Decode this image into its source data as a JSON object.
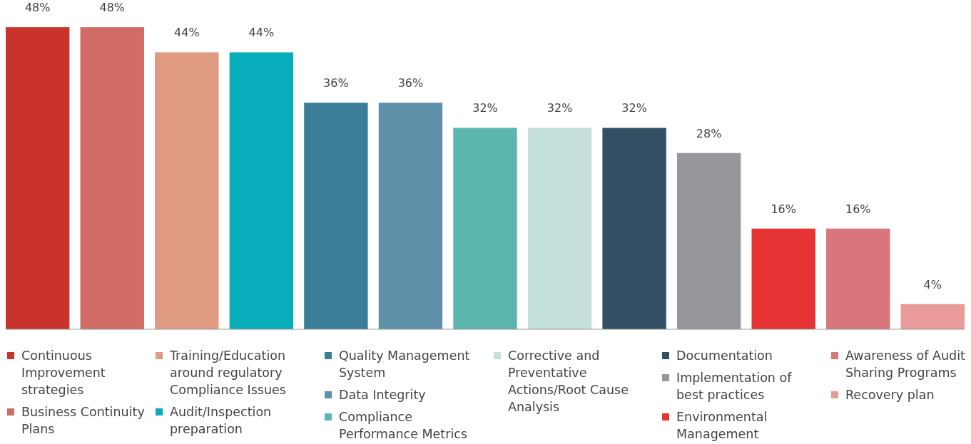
{
  "chart_data": {
    "type": "bar",
    "stacked": true,
    "categories": [
      null,
      null,
      null,
      null,
      null,
      null,
      null,
      null,
      null,
      null,
      null,
      null,
      null
    ],
    "series": [
      {
        "name": "Continuous Improvement strategies",
        "color": "#c9332c",
        "values": [
          48,
          null,
          null,
          null,
          null,
          null,
          null,
          null,
          null,
          null,
          null,
          null,
          null
        ],
        "value_labels": [
          "48%",
          null,
          null,
          null,
          null,
          null,
          null,
          null,
          null,
          null,
          null,
          null,
          null
        ]
      },
      {
        "name": "Business Continuity Plans",
        "color": "#d16b66",
        "values": [
          null,
          48,
          null,
          null,
          null,
          null,
          null,
          null,
          null,
          null,
          null,
          null,
          null
        ],
        "value_labels": [
          null,
          "48%",
          null,
          null,
          null,
          null,
          null,
          null,
          null,
          null,
          null,
          null,
          null
        ]
      },
      {
        "name": "Training/Education around regulatory Compliance Issues",
        "color": "#e09a82",
        "values": [
          null,
          null,
          44,
          null,
          null,
          null,
          null,
          null,
          null,
          null,
          null,
          null,
          null
        ],
        "value_labels": [
          null,
          null,
          "44%",
          null,
          null,
          null,
          null,
          null,
          null,
          null,
          null,
          null,
          null
        ]
      },
      {
        "name": "Audit/Inspection preparation",
        "color": "#08adbb",
        "values": [
          null,
          null,
          null,
          44,
          null,
          null,
          null,
          null,
          null,
          null,
          null,
          null,
          null
        ],
        "value_labels": [
          null,
          null,
          null,
          "44%",
          null,
          null,
          null,
          null,
          null,
          null,
          null,
          null,
          null
        ]
      },
      {
        "name": "Quality Management System",
        "color": "#3b7e9a",
        "values": [
          null,
          null,
          null,
          null,
          36,
          null,
          null,
          null,
          null,
          null,
          null,
          null,
          null
        ],
        "value_labels": [
          null,
          null,
          null,
          null,
          "36%",
          null,
          null,
          null,
          null,
          null,
          null,
          null,
          null
        ]
      },
      {
        "name": "Data Integrity",
        "color": "#5f90aa",
        "values": [
          null,
          null,
          null,
          null,
          null,
          36,
          null,
          null,
          null,
          null,
          null,
          null,
          null
        ],
        "value_labels": [
          null,
          null,
          null,
          null,
          null,
          "36%",
          null,
          null,
          null,
          null,
          null,
          null,
          null
        ]
      },
      {
        "name": "Compliance Performance Metrics",
        "color": "#5cb6ae",
        "values": [
          null,
          null,
          null,
          null,
          null,
          null,
          32,
          null,
          null,
          null,
          null,
          null,
          null
        ],
        "value_labels": [
          null,
          null,
          null,
          null,
          null,
          null,
          "32%",
          null,
          null,
          null,
          null,
          null,
          null
        ]
      },
      {
        "name": "Corrective and Preventative Actions/Root Cause Analysis",
        "color": "#c5e0dc",
        "values": [
          null,
          null,
          null,
          null,
          null,
          null,
          null,
          32,
          null,
          null,
          null,
          null,
          null
        ],
        "value_labels": [
          null,
          null,
          null,
          null,
          null,
          null,
          null,
          "32%",
          null,
          null,
          null,
          null,
          null
        ]
      },
      {
        "name": "Documentation",
        "color": "#324f63",
        "values": [
          null,
          null,
          null,
          null,
          null,
          null,
          null,
          null,
          32,
          null,
          null,
          null,
          null
        ],
        "value_labels": [
          null,
          null,
          null,
          null,
          null,
          null,
          null,
          null,
          "32%",
          null,
          null,
          null,
          null
        ]
      },
      {
        "name": "Implementation of best practices",
        "color": "#96979b",
        "values": [
          null,
          null,
          null,
          null,
          null,
          null,
          null,
          null,
          null,
          28,
          null,
          null,
          null
        ],
        "value_labels": [
          null,
          null,
          null,
          null,
          null,
          null,
          null,
          null,
          null,
          "28%",
          null,
          null,
          null
        ]
      },
      {
        "name": "Environmental Management",
        "color": "#e43332",
        "values": [
          null,
          null,
          null,
          null,
          null,
          null,
          null,
          null,
          null,
          null,
          16,
          null,
          null
        ],
        "value_labels": [
          null,
          null,
          null,
          null,
          null,
          null,
          null,
          null,
          null,
          null,
          "16%",
          null,
          null
        ]
      },
      {
        "name": "Awareness of Audit Sharing Programs",
        "color": "#d8767b",
        "values": [
          null,
          null,
          null,
          null,
          null,
          null,
          null,
          null,
          null,
          null,
          null,
          16,
          null
        ],
        "value_labels": [
          null,
          null,
          null,
          null,
          null,
          null,
          null,
          null,
          null,
          null,
          null,
          "16%",
          null
        ]
      },
      {
        "name": "Recovery plan",
        "color": "#e89b99",
        "values": [
          null,
          null,
          null,
          null,
          null,
          null,
          null,
          null,
          null,
          null,
          null,
          null,
          4
        ],
        "value_labels": [
          null,
          null,
          null,
          null,
          null,
          null,
          null,
          null,
          null,
          null,
          null,
          null,
          "4%"
        ]
      }
    ],
    "legend": "bottom"
  }
}
